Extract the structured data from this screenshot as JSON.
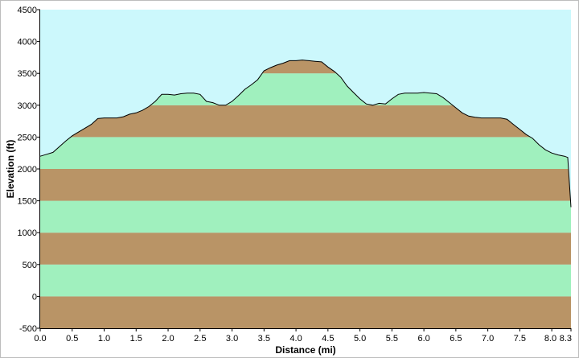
{
  "chart_data": {
    "type": "area",
    "title": "",
    "xlabel": "Distance  (mi)",
    "ylabel": "Elevation (ft)",
    "xlim": [
      0,
      8.3
    ],
    "ylim": [
      -500,
      4500
    ],
    "x_ticks": [
      0.0,
      0.5,
      1.0,
      1.5,
      2.0,
      2.5,
      3.0,
      3.5,
      4.0,
      4.5,
      5.0,
      5.5,
      6.0,
      6.5,
      7.0,
      7.5,
      8.0,
      8.3
    ],
    "x_tick_labels": [
      "0.0",
      "0.5",
      "1.0",
      "1.5",
      "2.0",
      "2.5",
      "3.0",
      "3.5",
      "4.0",
      "4.5",
      "5.0",
      "5.5",
      "6.0",
      "6.5",
      "7.0",
      "7.5",
      "8.0",
      "8.3"
    ],
    "y_ticks": [
      -500,
      0,
      500,
      1000,
      1500,
      2000,
      2500,
      3000,
      3500,
      4000,
      4500
    ],
    "y_tick_labels": [
      "-500",
      "0",
      "500",
      "1000",
      "1500",
      "2000",
      "2500",
      "3000",
      "3500",
      "4000",
      "4500"
    ],
    "grid": false,
    "band_interval_ft": 500,
    "colors": {
      "sky": "#ccf8fc",
      "band_brown": "#b99466",
      "band_green": "#a0f0be",
      "profile_line": "#000000"
    },
    "series": [
      {
        "x": [
          0.0,
          0.1,
          0.2,
          0.3,
          0.4,
          0.5,
          0.6,
          0.7,
          0.8,
          0.9,
          1.0,
          1.1,
          1.2,
          1.3,
          1.4,
          1.5,
          1.6,
          1.7,
          1.8,
          1.9,
          2.0,
          2.1,
          2.2,
          2.3,
          2.4,
          2.5,
          2.6,
          2.7,
          2.8,
          2.9,
          3.0,
          3.1,
          3.2,
          3.3,
          3.4,
          3.5,
          3.6,
          3.7,
          3.8,
          3.9,
          4.0,
          4.1,
          4.2,
          4.3,
          4.4,
          4.5,
          4.6,
          4.7,
          4.8,
          4.9,
          5.0,
          5.1,
          5.2,
          5.3,
          5.4,
          5.5,
          5.6,
          5.7,
          5.8,
          5.9,
          6.0,
          6.1,
          6.2,
          6.3,
          6.4,
          6.5,
          6.6,
          6.7,
          6.8,
          6.9,
          7.0,
          7.1,
          7.2,
          7.3,
          7.4,
          7.5,
          7.6,
          7.7,
          7.8,
          7.9,
          8.0,
          8.1,
          8.2,
          8.25,
          8.3
        ],
        "y": [
          2200,
          2230,
          2260,
          2350,
          2440,
          2520,
          2580,
          2640,
          2700,
          2790,
          2800,
          2800,
          2800,
          2820,
          2860,
          2880,
          2920,
          2980,
          3060,
          3170,
          3170,
          3160,
          3180,
          3190,
          3190,
          3170,
          3060,
          3040,
          3000,
          3000,
          3060,
          3150,
          3250,
          3320,
          3400,
          3540,
          3590,
          3630,
          3660,
          3700,
          3700,
          3710,
          3700,
          3690,
          3680,
          3600,
          3530,
          3440,
          3300,
          3200,
          3100,
          3020,
          3000,
          3030,
          3020,
          3100,
          3170,
          3190,
          3190,
          3190,
          3200,
          3190,
          3180,
          3120,
          3040,
          2960,
          2880,
          2830,
          2810,
          2800,
          2800,
          2800,
          2800,
          2780,
          2700,
          2620,
          2540,
          2480,
          2380,
          2300,
          2250,
          2220,
          2200,
          2180,
          1400
        ]
      }
    ]
  }
}
